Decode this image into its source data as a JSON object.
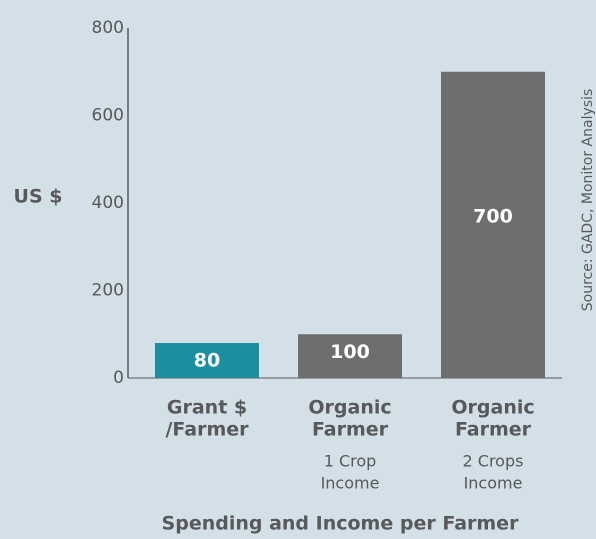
{
  "chart_data": {
    "type": "bar",
    "categories": [
      [
        "Grant $",
        "/Farmer"
      ],
      [
        "Organic",
        "Farmer"
      ],
      [
        "Organic",
        "Farmer"
      ]
    ],
    "category_notes": [
      null,
      [
        "1 Crop",
        "Income"
      ],
      [
        "2 Crops",
        "Income"
      ]
    ],
    "values": [
      80,
      100,
      700
    ],
    "colors": [
      "#1b8fa0",
      "#6d6e70",
      "#6d6e70"
    ],
    "ylabel": "US $",
    "xlabel": "Spending and Income per Farmer",
    "source": "Source: GADC, Monitor Analysis",
    "ylim": [
      0,
      800
    ],
    "yticks": [
      0,
      200,
      400,
      600,
      800
    ],
    "grid": false
  }
}
